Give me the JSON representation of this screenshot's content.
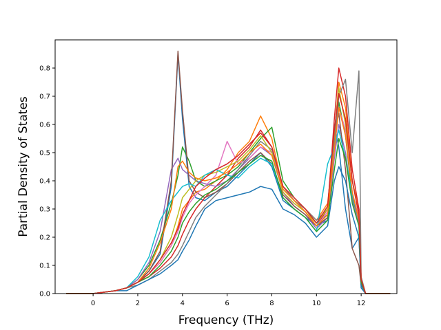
{
  "chart_data": {
    "type": "line",
    "title": "",
    "xlabel": "Frequency (THz)",
    "ylabel": "Partial Density of States",
    "xlim": [
      -1.7,
      13.6
    ],
    "ylim": [
      0.0,
      0.9
    ],
    "x_ticks": [
      0,
      2,
      4,
      6,
      8,
      10,
      12
    ],
    "y_ticks": [
      0.0,
      0.1,
      0.2,
      0.3,
      0.4,
      0.5,
      0.6,
      0.7,
      0.8
    ],
    "x_tick_labels": [
      "0",
      "2",
      "4",
      "6",
      "8",
      "10",
      "12"
    ],
    "y_tick_labels": [
      "0.0",
      "0.1",
      "0.2",
      "0.3",
      "0.4",
      "0.5",
      "0.6",
      "0.7",
      "0.8"
    ],
    "grid": false,
    "legend": "none",
    "colors": [
      "#1f77b4",
      "#ff7f0e",
      "#2ca02c",
      "#d62728",
      "#9467bd",
      "#8c564b",
      "#e377c2",
      "#7f7f7f",
      "#bcbd22",
      "#17becf"
    ],
    "x": [
      -1.2,
      0.0,
      1.0,
      1.5,
      2.0,
      2.5,
      3.0,
      3.5,
      3.8,
      4.0,
      4.3,
      4.6,
      5.0,
      5.5,
      6.0,
      6.5,
      7.0,
      7.5,
      8.0,
      8.5,
      9.0,
      9.5,
      10.0,
      10.5,
      10.8,
      11.0,
      11.3,
      11.6,
      11.9,
      12.0,
      12.2,
      13.3
    ],
    "series": [
      {
        "values": [
          0,
          0,
          0.01,
          0.02,
          0.04,
          0.08,
          0.14,
          0.38,
          0.85,
          0.62,
          0.38,
          0.34,
          0.33,
          0.36,
          0.38,
          0.42,
          0.46,
          0.5,
          0.45,
          0.33,
          0.3,
          0.27,
          0.24,
          0.26,
          0.6,
          0.52,
          0.3,
          0.16,
          0.2,
          0.02,
          0,
          0
        ]
      },
      {
        "values": [
          0,
          0,
          0.01,
          0.02,
          0.04,
          0.07,
          0.11,
          0.17,
          0.24,
          0.3,
          0.33,
          0.36,
          0.37,
          0.4,
          0.44,
          0.5,
          0.54,
          0.63,
          0.55,
          0.37,
          0.33,
          0.3,
          0.26,
          0.32,
          0.55,
          0.75,
          0.66,
          0.4,
          0.3,
          0.05,
          0,
          0
        ]
      },
      {
        "values": [
          0,
          0,
          0.01,
          0.02,
          0.05,
          0.1,
          0.19,
          0.32,
          0.42,
          0.52,
          0.47,
          0.4,
          0.38,
          0.4,
          0.42,
          0.45,
          0.5,
          0.55,
          0.59,
          0.4,
          0.34,
          0.3,
          0.25,
          0.28,
          0.52,
          0.68,
          0.56,
          0.34,
          0.25,
          0.04,
          0,
          0
        ]
      },
      {
        "values": [
          0,
          0,
          0.01,
          0.02,
          0.04,
          0.06,
          0.09,
          0.13,
          0.17,
          0.21,
          0.26,
          0.3,
          0.34,
          0.38,
          0.42,
          0.48,
          0.52,
          0.58,
          0.52,
          0.38,
          0.33,
          0.29,
          0.24,
          0.3,
          0.62,
          0.8,
          0.7,
          0.44,
          0.3,
          0.05,
          0,
          0
        ]
      },
      {
        "values": [
          0,
          0,
          0.01,
          0.02,
          0.05,
          0.11,
          0.22,
          0.44,
          0.48,
          0.44,
          0.42,
          0.4,
          0.39,
          0.38,
          0.4,
          0.44,
          0.48,
          0.52,
          0.49,
          0.36,
          0.31,
          0.28,
          0.23,
          0.27,
          0.48,
          0.6,
          0.5,
          0.33,
          0.25,
          0.04,
          0,
          0
        ]
      },
      {
        "values": [
          0,
          0,
          0.01,
          0.02,
          0.04,
          0.08,
          0.15,
          0.4,
          0.86,
          0.65,
          0.4,
          0.36,
          0.34,
          0.36,
          0.39,
          0.43,
          0.47,
          0.5,
          0.46,
          0.35,
          0.31,
          0.28,
          0.24,
          0.27,
          0.56,
          0.64,
          0.44,
          0.16,
          0.1,
          0.03,
          0,
          0
        ]
      },
      {
        "values": [
          0,
          0,
          0.01,
          0.02,
          0.04,
          0.07,
          0.11,
          0.17,
          0.22,
          0.27,
          0.32,
          0.35,
          0.38,
          0.42,
          0.54,
          0.46,
          0.48,
          0.52,
          0.5,
          0.36,
          0.32,
          0.29,
          0.24,
          0.29,
          0.5,
          0.66,
          0.58,
          0.36,
          0.27,
          0.04,
          0,
          0
        ]
      },
      {
        "values": [
          0,
          0,
          0.01,
          0.02,
          0.03,
          0.05,
          0.08,
          0.11,
          0.14,
          0.17,
          0.22,
          0.27,
          0.31,
          0.35,
          0.39,
          0.44,
          0.49,
          0.54,
          0.51,
          0.38,
          0.33,
          0.3,
          0.26,
          0.3,
          0.53,
          0.7,
          0.76,
          0.5,
          0.79,
          0.06,
          0,
          0
        ]
      },
      {
        "values": [
          0,
          0,
          0.01,
          0.02,
          0.04,
          0.07,
          0.12,
          0.2,
          0.28,
          0.34,
          0.37,
          0.4,
          0.42,
          0.43,
          0.45,
          0.47,
          0.51,
          0.56,
          0.5,
          0.36,
          0.32,
          0.29,
          0.25,
          0.3,
          0.57,
          0.73,
          0.6,
          0.4,
          0.28,
          0.05,
          0,
          0
        ]
      },
      {
        "values": [
          0,
          0,
          0.01,
          0.02,
          0.06,
          0.13,
          0.26,
          0.33,
          0.36,
          0.38,
          0.39,
          0.38,
          0.42,
          0.44,
          0.42,
          0.41,
          0.45,
          0.48,
          0.46,
          0.34,
          0.3,
          0.27,
          0.22,
          0.46,
          0.52,
          0.58,
          0.48,
          0.35,
          0.26,
          0.04,
          0,
          0
        ]
      },
      {
        "values": [
          0,
          0,
          0.01,
          0.01,
          0.03,
          0.05,
          0.07,
          0.1,
          0.12,
          0.15,
          0.19,
          0.24,
          0.3,
          0.33,
          0.34,
          0.35,
          0.36,
          0.38,
          0.37,
          0.3,
          0.28,
          0.25,
          0.2,
          0.24,
          0.4,
          0.45,
          0.4,
          0.28,
          0.2,
          0.03,
          0,
          0
        ]
      },
      {
        "values": [
          0,
          0,
          0.01,
          0.02,
          0.04,
          0.09,
          0.18,
          0.3,
          0.45,
          0.47,
          0.43,
          0.41,
          0.4,
          0.41,
          0.43,
          0.46,
          0.5,
          0.53,
          0.49,
          0.37,
          0.33,
          0.29,
          0.24,
          0.28,
          0.51,
          0.66,
          0.56,
          0.36,
          0.26,
          0.04,
          0,
          0
        ]
      },
      {
        "values": [
          0,
          0,
          0.01,
          0.02,
          0.04,
          0.06,
          0.1,
          0.15,
          0.2,
          0.25,
          0.29,
          0.32,
          0.35,
          0.37,
          0.4,
          0.43,
          0.46,
          0.49,
          0.47,
          0.34,
          0.3,
          0.27,
          0.22,
          0.26,
          0.44,
          0.55,
          0.48,
          0.32,
          0.24,
          0.04,
          0,
          0
        ]
      },
      {
        "values": [
          0,
          0,
          0.01,
          0.02,
          0.04,
          0.07,
          0.12,
          0.18,
          0.23,
          0.28,
          0.33,
          0.38,
          0.41,
          0.44,
          0.46,
          0.49,
          0.53,
          0.57,
          0.52,
          0.38,
          0.34,
          0.3,
          0.25,
          0.31,
          0.58,
          0.71,
          0.62,
          0.4,
          0.28,
          0.05,
          0,
          0
        ]
      }
    ]
  }
}
